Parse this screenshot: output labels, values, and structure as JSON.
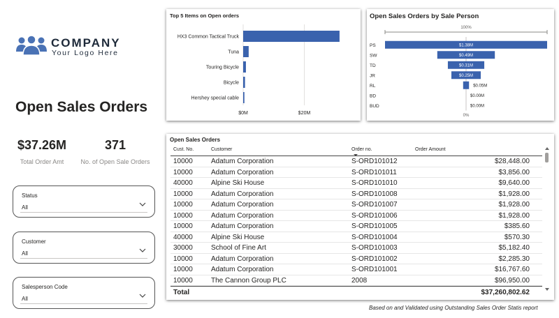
{
  "logo": {
    "company": "COMPANY",
    "tagline": "Your Logo Here"
  },
  "page": {
    "title": "Open Sales Orders",
    "footnote": "Based on and Validated using Outstanding Sales Order Statis report"
  },
  "kpis": [
    {
      "value": "$37.26M",
      "label": "Total Order Amt"
    },
    {
      "value": "371",
      "label": "No. of Open Sale Orders"
    }
  ],
  "slicers": [
    {
      "title": "Status",
      "value": "All"
    },
    {
      "title": "Customer",
      "value": "All"
    },
    {
      "title": "Salesperson Code",
      "value": "All"
    }
  ],
  "chart_data": [
    {
      "type": "bar",
      "orientation": "horizontal",
      "title": "Top 5 Items on Open orders",
      "categories": [
        "HX3 Common Tactical Truck",
        "Tuna",
        "Touring Bicycle",
        "Bicycle",
        "Hershey special cable"
      ],
      "values": [
        31.5,
        1.8,
        0.9,
        0.6,
        0.4
      ],
      "xlim": [
        0,
        37
      ],
      "xticks": [
        {
          "value": 0,
          "label": "$0M"
        },
        {
          "value": 20,
          "label": "$20M"
        }
      ],
      "grid": true,
      "color": "#3a62ad"
    },
    {
      "type": "funnel",
      "title": "Open Sales Orders by Sale Person",
      "categories": [
        "PS",
        "SW",
        "TD",
        "JR",
        "RL",
        "BD",
        "BUD"
      ],
      "values": [
        1.38,
        0.49,
        0.31,
        0.25,
        0.05,
        0,
        0
      ],
      "data_labels": [
        "$1.38M",
        "$0.49M",
        "$0.31M",
        "$0.25M",
        "$0.05M",
        "$0.00M",
        "$0.00M"
      ],
      "top_label": "100%",
      "bottom_label": "0%",
      "color": "#3a62ad"
    }
  ],
  "table": {
    "title": "Open Sales Orders",
    "columns": [
      "Cust. No.",
      "Customer",
      "Order no.",
      "Order Amount"
    ],
    "rows": [
      [
        "10000",
        "Adatum Corporation",
        "S-ORD101012",
        "$28,448.00"
      ],
      [
        "10000",
        "Adatum Corporation",
        "S-ORD101011",
        "$3,856.00"
      ],
      [
        "40000",
        "Alpine Ski House",
        "S-ORD101010",
        "$9,640.00"
      ],
      [
        "10000",
        "Adatum Corporation",
        "S-ORD101008",
        "$1,928.00"
      ],
      [
        "10000",
        "Adatum Corporation",
        "S-ORD101007",
        "$1,928.00"
      ],
      [
        "10000",
        "Adatum Corporation",
        "S-ORD101006",
        "$1,928.00"
      ],
      [
        "10000",
        "Adatum Corporation",
        "S-ORD101005",
        "$385.60"
      ],
      [
        "40000",
        "Alpine Ski House",
        "S-ORD101004",
        "$570.30"
      ],
      [
        "30000",
        "School of Fine Art",
        "S-ORD101003",
        "$5,182.40"
      ],
      [
        "10000",
        "Adatum Corporation",
        "S-ORD101002",
        "$2,285.30"
      ],
      [
        "10000",
        "Adatum Corporation",
        "S-ORD101001",
        "$16,767.60"
      ],
      [
        "10000",
        "The Cannon Group PLC",
        "2008",
        "$96,950.00"
      ]
    ],
    "total_label": "Total",
    "total_value": "$37,260,802.62"
  }
}
